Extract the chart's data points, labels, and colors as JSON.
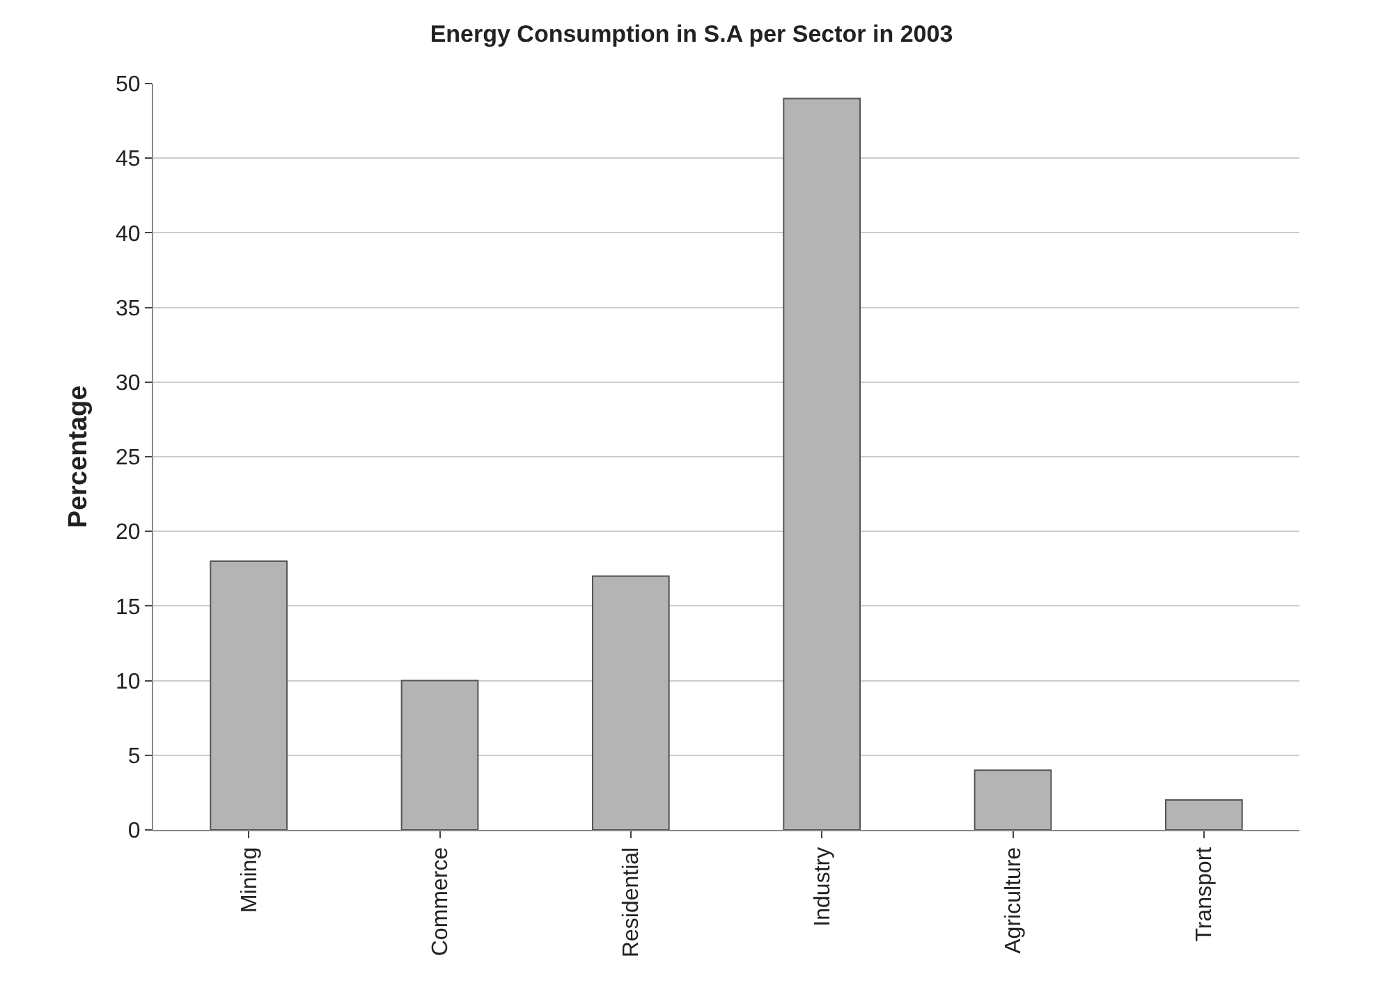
{
  "chart_data": {
    "type": "bar",
    "title": "Energy Consumption in S.A per Sector in 2003",
    "ylabel": "Percentage",
    "categories": [
      "Mining",
      "Commerce",
      "Residential",
      "Industry",
      "Agriculture",
      "Transport"
    ],
    "values": [
      18,
      10,
      17,
      49,
      4,
      2
    ],
    "color": "#b4b4b4",
    "ylim": [
      0,
      50
    ],
    "yticks": [
      0,
      5,
      10,
      15,
      20,
      25,
      30,
      35,
      40,
      45,
      50
    ],
    "grid": "y",
    "legend": false
  }
}
